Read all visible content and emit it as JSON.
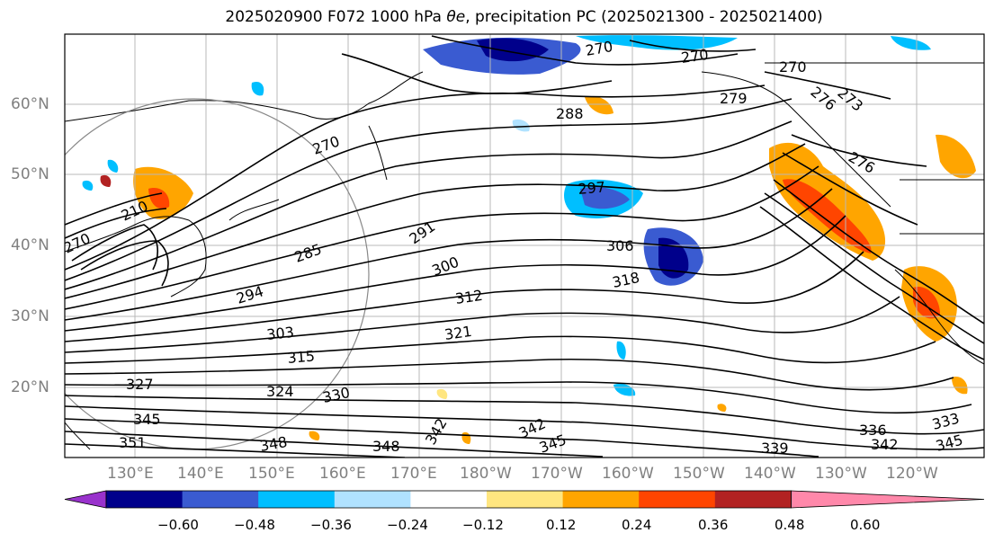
{
  "title": {
    "prefix": "2025020900 F072 1000 hPa ",
    "symbol": "θe",
    "suffix": ", precipitation PC (2025021300 - 2025021400)"
  },
  "lat_labels": [
    "60°N",
    "50°N",
    "40°N",
    "30°N",
    "20°N"
  ],
  "lon_labels": [
    "130°E",
    "140°E",
    "150°E",
    "160°E",
    "170°E",
    "180°W",
    "170°W",
    "160°W",
    "150°W",
    "140°W",
    "130°W",
    "120°W"
  ],
  "contour_labels": [
    "270",
    "270",
    "270",
    "276",
    "276",
    "273",
    "279",
    "288",
    "297",
    "291",
    "285",
    "294",
    "300",
    "306",
    "312",
    "318",
    "303",
    "315",
    "321",
    "324",
    "327",
    "330",
    "345",
    "351",
    "348",
    "348",
    "342",
    "342",
    "345",
    "339",
    "336",
    "342",
    "345",
    "333",
    "210",
    "270",
    "270"
  ],
  "colorbar": {
    "ticks": [
      "−0.60",
      "−0.48",
      "−0.36",
      "−0.24",
      "−0.12",
      "0.12",
      "0.24",
      "0.36",
      "0.48",
      "0.60"
    ],
    "colors": [
      "#9932cc",
      "#00008b",
      "#3a5bd1",
      "#00bfff",
      "#b0e2ff",
      "#ffffff",
      "#ffe680",
      "#ffa500",
      "#ff4500",
      "#b22222",
      "#ff88aa"
    ]
  }
}
